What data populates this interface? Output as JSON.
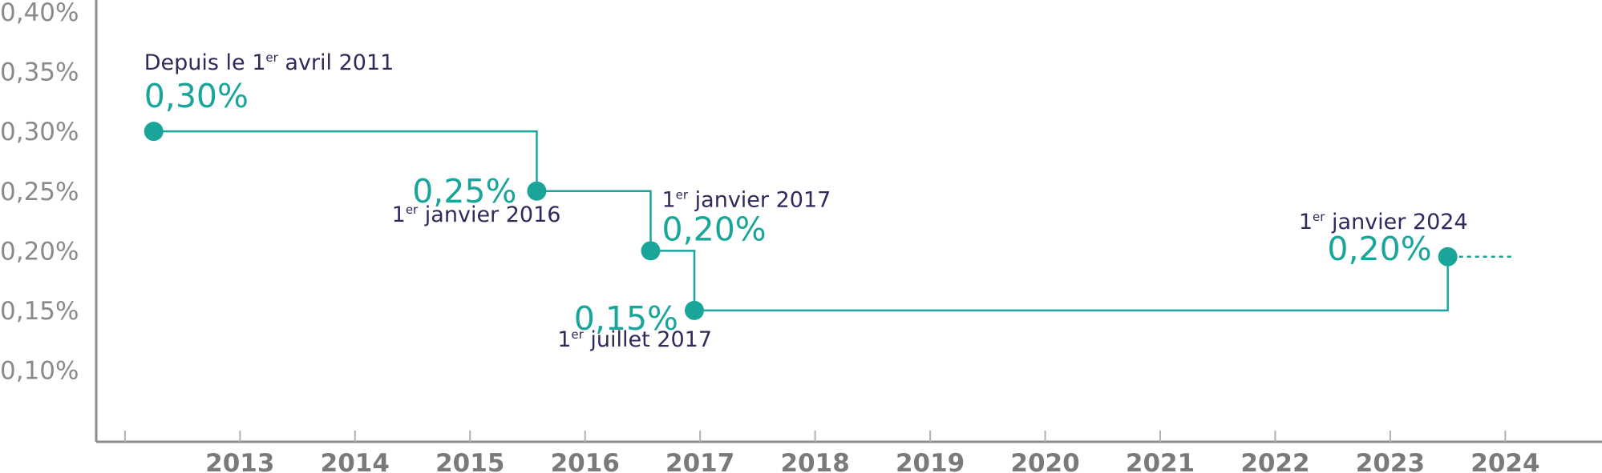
{
  "colors": {
    "accent": "#1aa59a",
    "axis": "#8c8c8c",
    "label_dark": "#2e2a5c",
    "tick_text": "#8a8a8a"
  },
  "chart_data": {
    "type": "line",
    "step": true,
    "y_tick_labels": [
      "0,40%",
      "0,35%",
      "0,30%",
      "0,25%",
      "0,20%",
      "0,15%",
      "0,10%"
    ],
    "y_tick_values": [
      0.4,
      0.35,
      0.3,
      0.25,
      0.2,
      0.15,
      0.1
    ],
    "x_tick_labels": [
      "2013",
      "2014",
      "2015",
      "2016",
      "2017",
      "2018",
      "2019",
      "2020",
      "2021",
      "2022",
      "2023",
      "2024"
    ],
    "ylim": [
      0.04,
      0.4
    ],
    "xlim": [
      2011.75,
      2024.75
    ],
    "grid": false,
    "series": [
      {
        "points": [
          {
            "x": 2012.25,
            "y": 0.3
          },
          {
            "x": 2015.58,
            "y": 0.25
          },
          {
            "x": 2016.57,
            "y": 0.2
          },
          {
            "x": 2016.95,
            "y": 0.15
          },
          {
            "x": 2023.5,
            "y": 0.195
          }
        ],
        "extension_end_x": 2024.0
      }
    ],
    "annotations": [
      {
        "point": 0,
        "date_pre": "Depuis le 1",
        "date_sup": "er",
        "date_post": " avril 2011",
        "value": "0,30%"
      },
      {
        "point": 1,
        "date_pre": "1",
        "date_sup": "er",
        "date_post": " janvier 2016",
        "value": "0,25%"
      },
      {
        "point": 2,
        "date_pre": "1",
        "date_sup": "er",
        "date_post": " janvier 2017",
        "value": "0,20%"
      },
      {
        "point": 3,
        "date_pre": "1",
        "date_sup": "er",
        "date_post": " juillet 2017",
        "value": "0,15%"
      },
      {
        "point": 4,
        "date_pre": "1",
        "date_sup": "er",
        "date_post": " janvier 2024",
        "value": "0,20%"
      }
    ]
  }
}
